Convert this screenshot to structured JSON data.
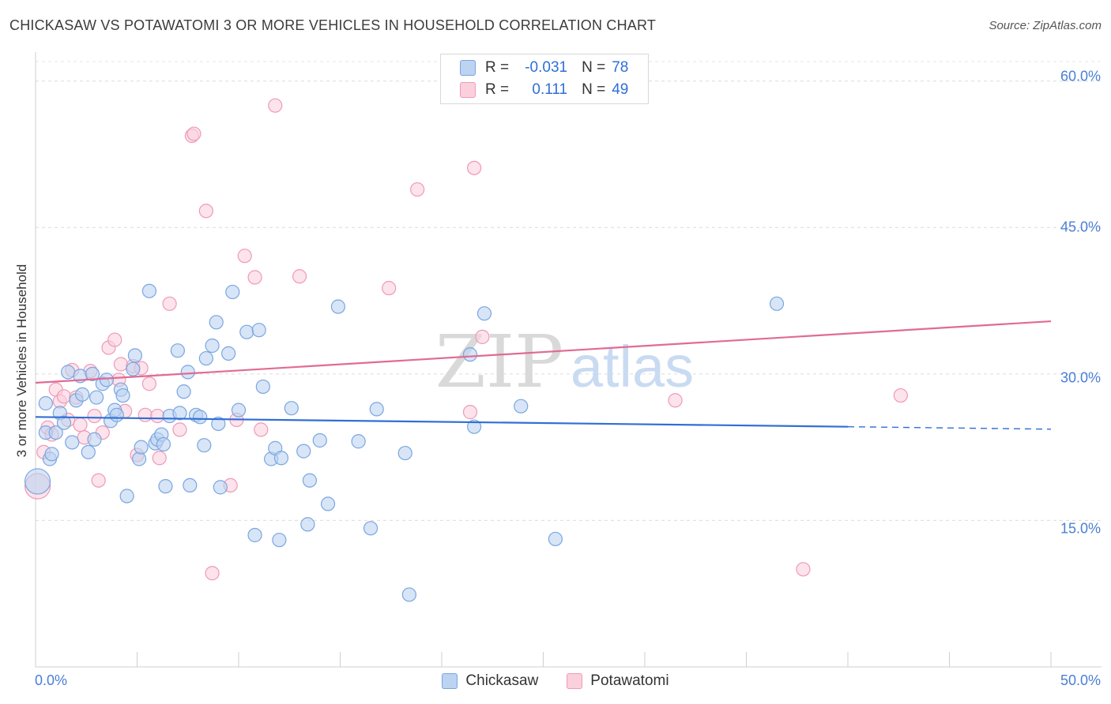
{
  "header": {
    "title": "CHICKASAW VS POTAWATOMI 3 OR MORE VEHICLES IN HOUSEHOLD CORRELATION CHART",
    "source": "Source: ZipAtlas.com"
  },
  "legend": {
    "rows": [
      {
        "r_label": "R =",
        "r_value": "-0.031",
        "n_label": "N =",
        "n_value": "78"
      },
      {
        "r_label": "R =",
        "r_value": "0.111",
        "n_label": "N =",
        "n_value": "49"
      }
    ]
  },
  "bottom_legend": [
    "Chickasaw",
    "Potawatomi"
  ],
  "watermark": {
    "zip": "ZIP",
    "atlas": "atlas"
  },
  "colors": {
    "chickasaw_fill": "#bcd3f2",
    "chickasaw_stroke": "#7aa6e0",
    "chickasaw_line": "#2f6fd6",
    "potawatomi_fill": "#fbd0dd",
    "potawatomi_stroke": "#ee9ab6",
    "potawatomi_line": "#e06b93",
    "tick_label": "#4a7fd4"
  },
  "chart_data": {
    "type": "scatter",
    "title": "CHICKASAW VS POTAWATOMI 3 OR MORE VEHICLES IN HOUSEHOLD CORRELATION CHART",
    "xlabel": "",
    "ylabel": "3 or more Vehicles in Household",
    "xlim": [
      0,
      50
    ],
    "ylim": [
      0,
      62
    ],
    "x_tick_labels": [
      "0.0%",
      "50.0%"
    ],
    "y_ticks": [
      15,
      30,
      45,
      60
    ],
    "y_tick_labels": [
      "15.0%",
      "30.0%",
      "45.0%",
      "60.0%"
    ],
    "grid": true,
    "legend_position": "top-center",
    "series": [
      {
        "name": "Chickasaw",
        "r": -0.031,
        "n": 78,
        "trend": {
          "x": [
            0,
            40
          ],
          "y": [
            25.6,
            24.6
          ],
          "dashed_to": 50
        },
        "points": [
          [
            0.1,
            19.0
          ],
          [
            0.5,
            24.0
          ],
          [
            0.5,
            27.0
          ],
          [
            0.7,
            21.3
          ],
          [
            0.8,
            21.8
          ],
          [
            1.0,
            24.0
          ],
          [
            1.2,
            26.0
          ],
          [
            1.4,
            25.0
          ],
          [
            1.6,
            30.2
          ],
          [
            1.8,
            23.0
          ],
          [
            2.0,
            27.3
          ],
          [
            2.2,
            29.8
          ],
          [
            2.3,
            27.9
          ],
          [
            2.6,
            22.0
          ],
          [
            2.8,
            30.0
          ],
          [
            2.9,
            23.3
          ],
          [
            3.0,
            27.6
          ],
          [
            3.3,
            29.0
          ],
          [
            3.5,
            29.4
          ],
          [
            3.7,
            25.2
          ],
          [
            3.9,
            26.3
          ],
          [
            4.0,
            25.8
          ],
          [
            4.2,
            28.4
          ],
          [
            4.3,
            27.8
          ],
          [
            4.5,
            17.5
          ],
          [
            4.8,
            30.5
          ],
          [
            4.9,
            31.9
          ],
          [
            5.1,
            21.3
          ],
          [
            5.2,
            22.5
          ],
          [
            5.6,
            38.5
          ],
          [
            5.9,
            22.9
          ],
          [
            6.0,
            23.3
          ],
          [
            6.2,
            23.8
          ],
          [
            6.3,
            22.8
          ],
          [
            6.4,
            18.5
          ],
          [
            6.6,
            25.7
          ],
          [
            7.0,
            32.4
          ],
          [
            7.1,
            26.0
          ],
          [
            7.3,
            28.2
          ],
          [
            7.5,
            30.2
          ],
          [
            7.6,
            18.6
          ],
          [
            7.9,
            25.8
          ],
          [
            8.1,
            25.6
          ],
          [
            8.3,
            22.7
          ],
          [
            8.4,
            31.6
          ],
          [
            8.7,
            32.9
          ],
          [
            8.9,
            35.3
          ],
          [
            9.0,
            24.9
          ],
          [
            9.1,
            18.4
          ],
          [
            9.5,
            32.1
          ],
          [
            9.7,
            38.4
          ],
          [
            10.0,
            26.3
          ],
          [
            10.4,
            34.3
          ],
          [
            10.8,
            13.5
          ],
          [
            11.0,
            34.5
          ],
          [
            11.2,
            28.7
          ],
          [
            11.6,
            21.3
          ],
          [
            11.8,
            22.4
          ],
          [
            12.0,
            13.0
          ],
          [
            12.1,
            21.4
          ],
          [
            12.6,
            26.5
          ],
          [
            13.2,
            22.1
          ],
          [
            13.4,
            14.6
          ],
          [
            13.5,
            19.1
          ],
          [
            14.0,
            23.2
          ],
          [
            14.4,
            16.7
          ],
          [
            14.9,
            36.9
          ],
          [
            15.9,
            23.1
          ],
          [
            16.5,
            14.2
          ],
          [
            16.8,
            26.4
          ],
          [
            18.2,
            21.9
          ],
          [
            18.4,
            7.4
          ],
          [
            21.4,
            32.0
          ],
          [
            21.6,
            24.6
          ],
          [
            22.1,
            36.2
          ],
          [
            23.9,
            26.7
          ],
          [
            25.6,
            13.1
          ],
          [
            36.5,
            37.2
          ]
        ]
      },
      {
        "name": "Potawatomi",
        "r": 0.111,
        "n": 49,
        "trend": {
          "x": [
            0,
            50
          ],
          "y": [
            29.1,
            35.4
          ]
        },
        "points": [
          [
            0.1,
            18.5
          ],
          [
            0.4,
            22.0
          ],
          [
            0.6,
            24.5
          ],
          [
            0.8,
            23.8
          ],
          [
            1.0,
            28.4
          ],
          [
            1.2,
            27.2
          ],
          [
            1.4,
            27.7
          ],
          [
            1.6,
            25.3
          ],
          [
            1.8,
            30.4
          ],
          [
            2.0,
            27.6
          ],
          [
            2.2,
            24.8
          ],
          [
            2.4,
            23.5
          ],
          [
            2.7,
            30.3
          ],
          [
            2.9,
            25.7
          ],
          [
            3.1,
            19.1
          ],
          [
            3.3,
            24.0
          ],
          [
            3.6,
            32.7
          ],
          [
            3.9,
            33.5
          ],
          [
            4.1,
            29.4
          ],
          [
            4.2,
            31.0
          ],
          [
            4.4,
            26.2
          ],
          [
            4.8,
            30.8
          ],
          [
            5.0,
            21.7
          ],
          [
            5.2,
            30.6
          ],
          [
            5.4,
            25.8
          ],
          [
            5.6,
            29.0
          ],
          [
            6.0,
            25.7
          ],
          [
            6.1,
            21.4
          ],
          [
            6.6,
            37.2
          ],
          [
            7.1,
            24.3
          ],
          [
            7.7,
            54.4
          ],
          [
            7.8,
            54.6
          ],
          [
            8.4,
            46.7
          ],
          [
            8.7,
            9.6
          ],
          [
            9.6,
            18.6
          ],
          [
            9.9,
            25.3
          ],
          [
            10.3,
            42.1
          ],
          [
            10.8,
            39.9
          ],
          [
            11.1,
            24.3
          ],
          [
            11.8,
            57.5
          ],
          [
            13.0,
            40.0
          ],
          [
            17.4,
            38.8
          ],
          [
            18.8,
            48.9
          ],
          [
            21.4,
            26.1
          ],
          [
            21.6,
            51.1
          ],
          [
            22.0,
            33.8
          ],
          [
            31.5,
            27.3
          ],
          [
            37.8,
            10.0
          ],
          [
            42.6,
            27.8
          ]
        ]
      }
    ]
  }
}
